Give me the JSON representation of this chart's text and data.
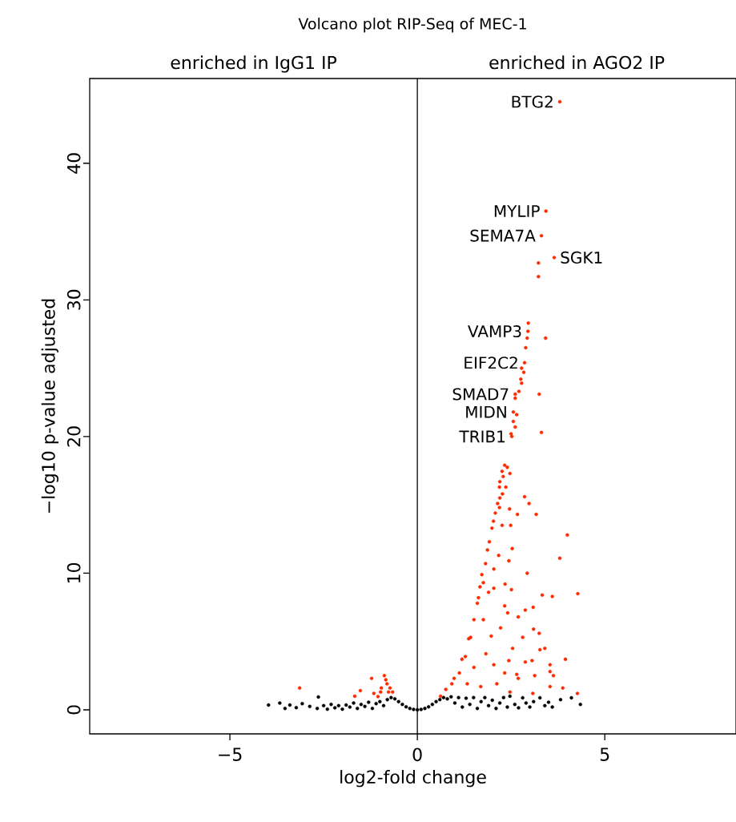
{
  "chart_data": {
    "type": "scatter",
    "title": "Volcano plot RIP-Seq of MEC-1",
    "xlabel": "log2-fold change",
    "ylabel": "−log10 p-value adjusted",
    "xlim": [
      -8.74,
      8.5
    ],
    "ylim": [
      -1.76,
      46.2
    ],
    "xticks": [
      {
        "value": -5,
        "label": "−5"
      },
      0,
      5
    ],
    "yticks": [
      0,
      10,
      20,
      30,
      40
    ],
    "grid": false,
    "marker": "circle",
    "ref_lines": [
      {
        "axis": "x",
        "value": 0,
        "color": "#000000"
      }
    ],
    "annotations": [
      "enriched in IgG1 IP",
      "enriched in AGO2 IP",
      {
        "text": "BTG2",
        "x": 3.8,
        "y": 44.5
      },
      {
        "text": "MYLIP",
        "x": 3.43,
        "y": 36.5
      },
      {
        "text": "SEMA7A",
        "x": 3.31,
        "y": 34.7
      },
      {
        "text": "SGK1",
        "x": 3.65,
        "y": 33.1
      },
      {
        "text": "VAMP3",
        "x": 2.95,
        "y": 27.7
      },
      {
        "text": "EIF2C2",
        "x": 2.86,
        "y": 25.4
      },
      {
        "text": "SMAD7",
        "x": 2.61,
        "y": 23.1
      },
      {
        "text": "MIDN",
        "x": 2.56,
        "y": 21.8
      },
      {
        "text": "TRIB1",
        "x": 2.52,
        "y": 20.0
      }
    ],
    "series": [
      {
        "color": "#000000",
        "x": [
          -3.97,
          -3.67,
          -3.53,
          -3.4,
          -3.23,
          -3.07,
          -2.87,
          -2.64,
          -2.67,
          -2.5,
          -2.4,
          -2.3,
          -2.2,
          -2.1,
          -2.0,
          -1.9,
          -1.8,
          -1.7,
          -1.6,
          -1.5,
          -1.4,
          -1.3,
          -1.2,
          -1.1,
          -1.0,
          -0.9,
          -0.8,
          -0.7,
          -0.6,
          -0.5,
          -0.4,
          -0.3,
          -0.2,
          -0.1,
          0,
          0.1,
          0.2,
          0.3,
          0.4,
          0.5,
          0.6,
          0.7,
          0.8,
          0.9,
          1.0,
          1.1,
          1.2,
          1.3,
          1.4,
          1.5,
          1.6,
          1.7,
          1.8,
          1.9,
          2.0,
          2.1,
          2.2,
          2.3,
          2.4,
          2.47,
          2.6,
          2.7,
          2.81,
          2.9,
          3.0,
          3.1,
          3.27,
          3.4,
          3.5,
          3.6,
          3.82,
          4.11,
          4.35
        ],
        "values": [
          0.35,
          0.49,
          0.1,
          0.35,
          0.16,
          0.45,
          0.25,
          0.94,
          0.1,
          0.3,
          0.05,
          0.4,
          0.15,
          0.3,
          0.05,
          0.35,
          0.2,
          0.5,
          0.1,
          0.4,
          0.25,
          0.55,
          0.1,
          0.45,
          0.6,
          0.3,
          0.75,
          0.9,
          0.8,
          0.6,
          0.4,
          0.22,
          0.1,
          0.03,
          0,
          0.03,
          0.1,
          0.22,
          0.4,
          0.6,
          0.75,
          0.9,
          0.8,
          0.95,
          0.5,
          0.9,
          0.2,
          0.85,
          0.4,
          0.9,
          0.1,
          0.6,
          0.9,
          0.3,
          0.7,
          0.1,
          0.5,
          0.9,
          0.2,
          1.0,
          0.4,
          0.15,
          0.88,
          0.5,
          0.2,
          0.6,
          0.88,
          0.3,
          0.55,
          0.2,
          0.74,
          0.88,
          0.4
        ]
      },
      {
        "color": "#ff2a00",
        "x": [
          3.8,
          3.43,
          3.31,
          3.65,
          3.23,
          3.23,
          2.96,
          2.95,
          2.93,
          3.42,
          2.89,
          2.86,
          2.84,
          2.78,
          2.76,
          2.78,
          2.71,
          3.25,
          2.61,
          2.61,
          2.56,
          2.65,
          2.56,
          2.61,
          2.5,
          2.52,
          3.31,
          2.33,
          2.4,
          2.47,
          2.26,
          2.29,
          2.2,
          2.36,
          2.19,
          2.27,
          2.2,
          2.14,
          2.19,
          2.08,
          2.03,
          1.99,
          1.92,
          1.87,
          1.82,
          1.72,
          1.67,
          1.6,
          1.51,
          1.37,
          1.19,
          0.98,
          0.76,
          0.62,
          2.86,
          2.98,
          3.17,
          2.67,
          2.46,
          2.26,
          2.49,
          4.0,
          2.53,
          3.8,
          2.17,
          2.44,
          2.93,
          2.04,
          2.34,
          2.51,
          3.33,
          3.6,
          4.28,
          2.04,
          2.33,
          2.41,
          2.88,
          3.09,
          2.69,
          2.22,
          3.1,
          3.25,
          2.81,
          2.54,
          3.4,
          3.27,
          3.95,
          3.06,
          2.88,
          2.44,
          3.54,
          3.54,
          3.63,
          3.13,
          2.65,
          3.88,
          3.54,
          4.27,
          3.08,
          2.47,
          2.04,
          1.83,
          1.97,
          1.76,
          1.9,
          1.42,
          1.28,
          1.63,
          1.76,
          1.51,
          1.12,
          1.69,
          1.33,
          0.92,
          2.12,
          2.33,
          2.69,
          -3.14,
          -1.22,
          -1.52,
          -1.67,
          -0.88,
          -0.84,
          -0.81,
          -0.96,
          -1.16,
          -0.98,
          -1.05,
          -0.73,
          -0.66,
          -0.77
        ],
        "values": [
          44.5,
          36.5,
          34.7,
          33.1,
          32.7,
          31.7,
          28.3,
          27.7,
          27.2,
          27.2,
          26.5,
          25.4,
          24.7,
          25.0,
          24.2,
          23.9,
          23.3,
          23.1,
          23.1,
          22.8,
          21.8,
          21.6,
          21.1,
          20.7,
          20.2,
          20.0,
          20.3,
          17.9,
          17.75,
          17.3,
          17.45,
          17.07,
          16.7,
          16.3,
          16.3,
          15.8,
          15.5,
          15.1,
          14.8,
          14.4,
          13.8,
          13.3,
          12.3,
          11.7,
          10.7,
          9.9,
          9.0,
          7.8,
          6.6,
          5.2,
          3.7,
          2.3,
          1.5,
          1.0,
          15.6,
          15.1,
          14.3,
          14.3,
          14.7,
          13.5,
          13.5,
          12.8,
          11.8,
          11.1,
          11.3,
          10.9,
          10.0,
          10.3,
          9.2,
          8.8,
          8.4,
          8.3,
          8.5,
          8.9,
          7.6,
          7.1,
          7.3,
          7.5,
          6.8,
          6.0,
          5.9,
          5.6,
          5.3,
          4.5,
          4.5,
          4.4,
          3.7,
          3.6,
          3.5,
          3.6,
          3.3,
          2.8,
          2.5,
          2.5,
          2.6,
          1.6,
          1.7,
          1.2,
          1.2,
          1.3,
          3.3,
          4.1,
          5.4,
          6.6,
          8.6,
          5.3,
          3.9,
          8.2,
          9.3,
          3.1,
          2.7,
          1.7,
          1.9,
          1.9,
          1.9,
          2.7,
          2.3,
          1.6,
          2.3,
          1.4,
          1.0,
          2.5,
          2.2,
          1.9,
          1.6,
          1.2,
          1.3,
          0.97,
          1.6,
          1.3,
          1.3
        ]
      }
    ]
  }
}
